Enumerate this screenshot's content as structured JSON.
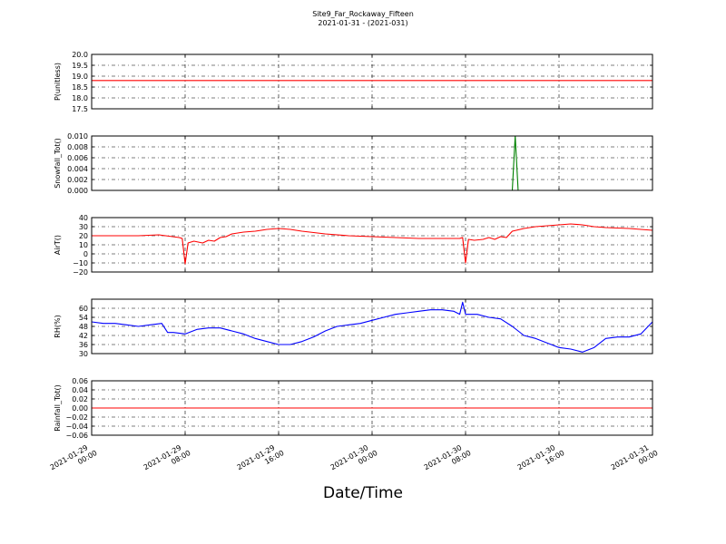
{
  "figure": {
    "title": "Site9_Far_Rockaway_Fifteen",
    "subtitle": "2021-01-31 - (2021-031)",
    "xlabel": "Date/Time"
  },
  "x_ticks": [
    {
      "line1": "2021-01-29",
      "line2": "00:00"
    },
    {
      "line1": "2021-01-29",
      "line2": "08:00"
    },
    {
      "line1": "2021-01-29",
      "line2": "16:00"
    },
    {
      "line1": "2021-01-30",
      "line2": "00:00"
    },
    {
      "line1": "2021-01-30",
      "line2": "08:00"
    },
    {
      "line1": "2021-01-30",
      "line2": "16:00"
    },
    {
      "line1": "2021-01-31",
      "line2": "00:00"
    }
  ],
  "chart_data": [
    {
      "type": "line",
      "ylabel": "P(unitless)",
      "ylim": [
        17.5,
        20.0
      ],
      "yticks": [
        "17.5",
        "18.0",
        "18.5",
        "19.0",
        "19.5",
        "20.0"
      ],
      "xlim": [
        "2021-01-29 00:00",
        "2021-01-31 00:00"
      ],
      "grid": true,
      "series": [
        {
          "color": "#ff0000",
          "x": [
            "2021-01-29 00:00",
            "2021-01-31 00:00"
          ],
          "y": [
            18.8,
            18.8
          ]
        }
      ]
    },
    {
      "type": "line",
      "ylabel": "Snowfall_Tot()",
      "ylim": [
        0.0,
        0.01
      ],
      "yticks": [
        "0.000",
        "0.002",
        "0.004",
        "0.006",
        "0.008",
        "0.010"
      ],
      "xlim": [
        "2021-01-29 00:00",
        "2021-01-31 00:00"
      ],
      "grid": true,
      "series": [
        {
          "color": "#008000",
          "x": [
            "2021-01-29 00:00",
            "2021-01-30 12:00",
            "2021-01-30 12:15",
            "2021-01-30 12:30",
            "2021-01-31 00:00"
          ],
          "y": [
            0,
            0,
            0.01,
            0,
            0
          ]
        }
      ]
    },
    {
      "type": "line",
      "ylabel": "AirT()",
      "ylim": [
        -20,
        40
      ],
      "yticks": [
        "−20",
        "−10",
        "0",
        "10",
        "20",
        "30",
        "40"
      ],
      "xlim": [
        "2021-01-29 00:00",
        "2021-01-31 00:00"
      ],
      "grid": true,
      "series": [
        {
          "color": "#ff0000",
          "x": [
            "2021-01-29 00:00",
            "2021-01-29 02:00",
            "2021-01-29 04:00",
            "2021-01-29 05:45",
            "2021-01-29 07:30",
            "2021-01-29 07:45",
            "2021-01-29 08:00",
            "2021-01-29 08:15",
            "2021-01-29 08:45",
            "2021-01-29 09:30",
            "2021-01-29 10:00",
            "2021-01-29 10:30",
            "2021-01-29 11:00",
            "2021-01-29 11:30",
            "2021-01-29 12:00",
            "2021-01-29 13:00",
            "2021-01-29 14:00",
            "2021-01-29 15:00",
            "2021-01-29 16:00",
            "2021-01-29 17:00",
            "2021-01-29 18:00",
            "2021-01-29 20:00",
            "2021-01-29 22:00",
            "2021-01-30 00:00",
            "2021-01-30 02:00",
            "2021-01-30 04:00",
            "2021-01-30 07:30",
            "2021-01-30 07:45",
            "2021-01-30 08:00",
            "2021-01-30 08:15",
            "2021-01-30 08:45",
            "2021-01-30 09:30",
            "2021-01-30 10:00",
            "2021-01-30 10:30",
            "2021-01-30 11:00",
            "2021-01-30 11:30",
            "2021-01-30 12:00",
            "2021-01-30 13:00",
            "2021-01-30 14:00",
            "2021-01-30 15:00",
            "2021-01-30 16:00",
            "2021-01-30 17:00",
            "2021-01-30 18:00",
            "2021-01-30 19:00",
            "2021-01-30 20:00",
            "2021-01-30 22:00",
            "2021-01-31 00:00"
          ],
          "y": [
            20,
            20,
            20,
            21,
            18,
            17,
            -11,
            12,
            14,
            12,
            15,
            14,
            18,
            19,
            22,
            24,
            25,
            27,
            28,
            27,
            25,
            22,
            20,
            19,
            18,
            17,
            17,
            18,
            -10,
            16,
            15,
            16,
            18,
            16,
            19,
            18,
            25,
            28,
            30,
            31,
            32,
            33,
            32,
            30,
            29,
            28,
            26
          ]
        }
      ]
    },
    {
      "type": "line",
      "ylabel": "RH(%)",
      "ylim": [
        30,
        66
      ],
      "yticks": [
        "30",
        "36",
        "42",
        "48",
        "54",
        "60"
      ],
      "xlim": [
        "2021-01-29 00:00",
        "2021-01-31 00:00"
      ],
      "grid": true,
      "series": [
        {
          "color": "#0000ff",
          "x": [
            "2021-01-29 00:00",
            "2021-01-29 01:00",
            "2021-01-29 02:00",
            "2021-01-29 03:00",
            "2021-01-29 04:00",
            "2021-01-29 05:00",
            "2021-01-29 06:00",
            "2021-01-29 06:30",
            "2021-01-29 07:00",
            "2021-01-29 08:00",
            "2021-01-29 09:00",
            "2021-01-29 10:00",
            "2021-01-29 11:00",
            "2021-01-29 12:00",
            "2021-01-29 13:00",
            "2021-01-29 14:00",
            "2021-01-29 15:00",
            "2021-01-29 16:00",
            "2021-01-29 17:00",
            "2021-01-29 18:00",
            "2021-01-29 19:00",
            "2021-01-29 20:00",
            "2021-01-29 21:00",
            "2021-01-29 22:00",
            "2021-01-29 23:00",
            "2021-01-30 00:00",
            "2021-01-30 01:00",
            "2021-01-30 02:00",
            "2021-01-30 03:00",
            "2021-01-30 04:00",
            "2021-01-30 05:00",
            "2021-01-30 06:00",
            "2021-01-30 07:00",
            "2021-01-30 07:30",
            "2021-01-30 07:45",
            "2021-01-30 08:00",
            "2021-01-30 09:00",
            "2021-01-30 10:00",
            "2021-01-30 11:00",
            "2021-01-30 12:00",
            "2021-01-30 13:00",
            "2021-01-30 14:00",
            "2021-01-30 15:00",
            "2021-01-30 16:00",
            "2021-01-30 17:00",
            "2021-01-30 18:00",
            "2021-01-30 19:00",
            "2021-01-30 20:00",
            "2021-01-30 21:00",
            "2021-01-30 22:00",
            "2021-01-30 23:00",
            "2021-01-31 00:00"
          ],
          "y": [
            51,
            50,
            50,
            49,
            48,
            49,
            50,
            44,
            44,
            43,
            46,
            47,
            47,
            45,
            43,
            40,
            38,
            36,
            36,
            38,
            41,
            45,
            48,
            49,
            50,
            52,
            54,
            56,
            57,
            58,
            59,
            59,
            58,
            56,
            64,
            56,
            56,
            54,
            53,
            48,
            42,
            40,
            37,
            34,
            33,
            31,
            34,
            40,
            41,
            41,
            43,
            51
          ]
        }
      ]
    },
    {
      "type": "line",
      "ylabel": "Rainfall_Tot()",
      "ylim": [
        -0.06,
        0.06
      ],
      "yticks": [
        "−0.06",
        "−0.04",
        "−0.02",
        "0.00",
        "0.02",
        "0.04",
        "0.06"
      ],
      "xlim": [
        "2021-01-29 00:00",
        "2021-01-31 00:00"
      ],
      "grid": true,
      "series": [
        {
          "color": "#ff0000",
          "x": [
            "2021-01-29 00:00",
            "2021-01-31 00:00"
          ],
          "y": [
            0,
            0
          ]
        }
      ]
    }
  ]
}
